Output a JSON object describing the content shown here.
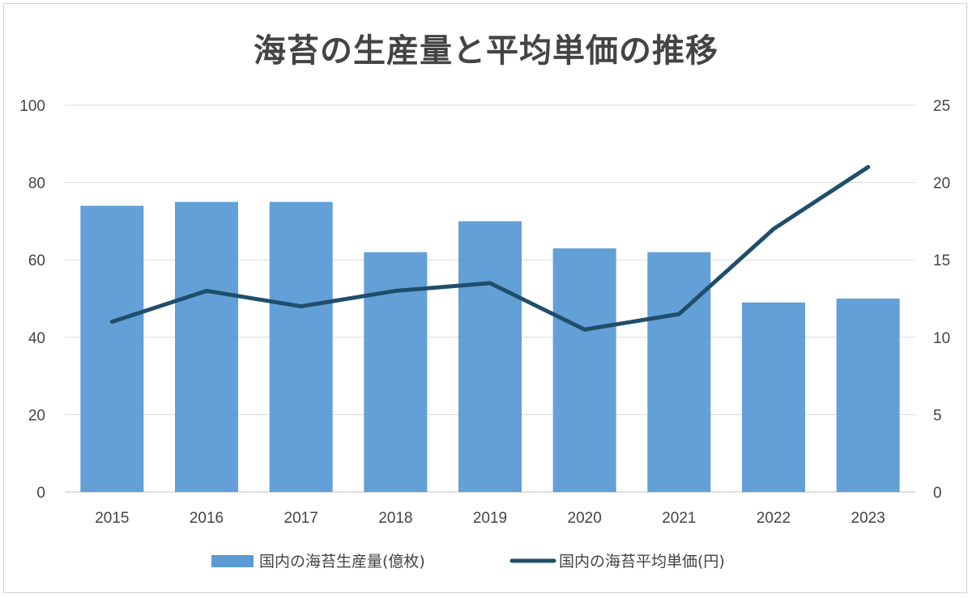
{
  "chart_data": {
    "type": "bar",
    "title": "海苔の生産量と平均単価の推移",
    "categories": [
      "2015",
      "2016",
      "2017",
      "2018",
      "2019",
      "2020",
      "2021",
      "2022",
      "2023"
    ],
    "series": [
      {
        "name": "国内の海苔生産量(億枚)",
        "type": "bar",
        "axis": "left",
        "color": "#5b9bd5",
        "values": [
          74,
          75,
          75,
          62,
          70,
          63,
          62,
          49,
          50
        ]
      },
      {
        "name": "国内の海苔平均単価(円)",
        "type": "line",
        "axis": "right",
        "color": "#1f4e6b",
        "values": [
          11,
          13,
          12,
          13,
          13.5,
          10.5,
          11.5,
          17,
          21
        ]
      }
    ],
    "y_left": {
      "min": 0,
      "max": 100,
      "ticks": [
        "0",
        "20",
        "40",
        "60",
        "80",
        "100"
      ]
    },
    "y_right": {
      "min": 0,
      "max": 25,
      "ticks": [
        "0",
        "5",
        "10",
        "15",
        "20",
        "25"
      ]
    },
    "grid": true,
    "legend_position": "bottom"
  }
}
